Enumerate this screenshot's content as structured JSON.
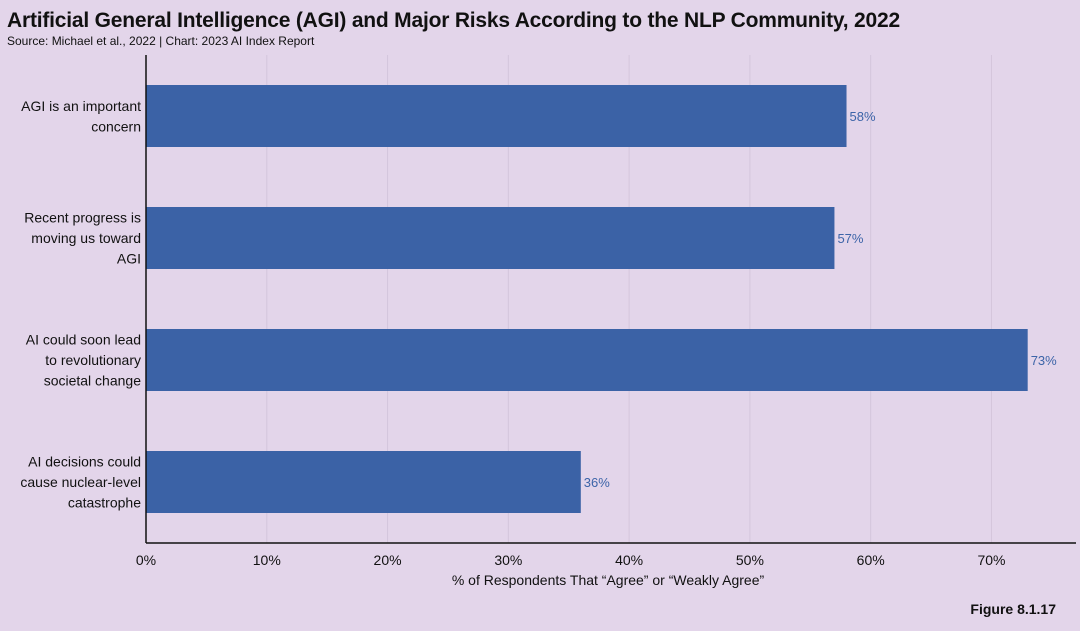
{
  "title": "Artificial General Intelligence (AGI) and Major Risks According to the NLP Community, 2022",
  "subtitle": "Source: Michael et al., 2022 | Chart: 2023 AI Index Report",
  "figure_label": "Figure 8.1.17",
  "colors": {
    "background": "#e3d5ea",
    "bar": "#3b62a6",
    "value_label": "#3c64a8",
    "grid": "#d4c6dc"
  },
  "chart_data": {
    "type": "bar",
    "orientation": "horizontal",
    "categories": [
      [
        "AGI is an important",
        "concern"
      ],
      [
        "Recent progress is",
        "moving us toward",
        "AGI"
      ],
      [
        "AI could soon lead",
        "to revolutionary",
        "societal change"
      ],
      [
        "AI decisions could",
        "cause nuclear-level",
        "catastrophe"
      ]
    ],
    "values": [
      58,
      57,
      73,
      36
    ],
    "value_labels": [
      "58%",
      "57%",
      "73%",
      "36%"
    ],
    "xlabel": "% of Respondents That “Agree” or “Weakly Agree”",
    "ylabel": "",
    "xlim": [
      0,
      77
    ],
    "xticks": [
      0,
      10,
      20,
      30,
      40,
      50,
      60,
      70
    ],
    "xtick_labels": [
      "0%",
      "10%",
      "20%",
      "30%",
      "40%",
      "50%",
      "60%",
      "70%"
    ],
    "grid": true
  }
}
